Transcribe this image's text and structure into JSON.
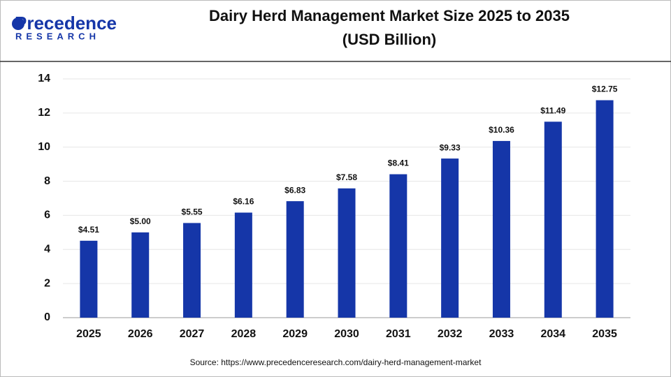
{
  "logo": {
    "name": "Precedence",
    "tagline": "RESEARCH"
  },
  "chart_data": {
    "type": "bar",
    "title_lines": [
      "Dairy Herd Management Market Size 2025 to 2035",
      "(USD Billion)"
    ],
    "categories": [
      "2025",
      "2026",
      "2027",
      "2028",
      "2029",
      "2030",
      "2031",
      "2032",
      "2033",
      "2034",
      "2035"
    ],
    "values": [
      4.51,
      5.0,
      5.55,
      6.16,
      6.83,
      7.58,
      8.41,
      9.33,
      10.36,
      11.49,
      12.75
    ],
    "value_labels": [
      "$4.51",
      "$5.00",
      "$5.55",
      "$6.16",
      "$6.83",
      "$7.58",
      "$8.41",
      "$9.33",
      "$10.36",
      "$11.49",
      "$12.75"
    ],
    "color": "#1536a8",
    "ylim": [
      0,
      14
    ],
    "yticks": [
      0,
      2,
      4,
      6,
      8,
      10,
      12,
      14
    ],
    "grid": true,
    "source": "Source: https://www.precedenceresearch.com/dairy-herd-management-market"
  }
}
